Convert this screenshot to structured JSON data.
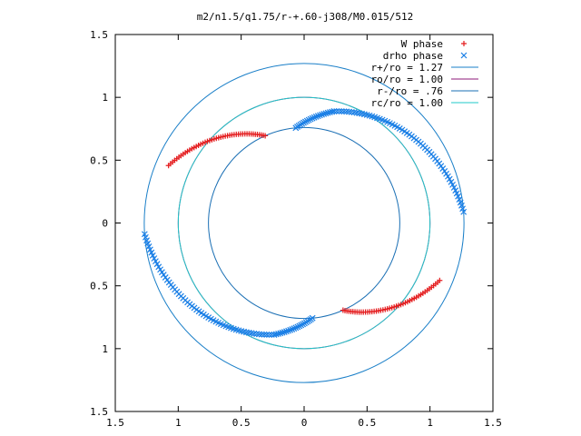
{
  "chart_data": {
    "type": "scatter",
    "title": "m2/n1.5/q1.75/r-+.60-j308/M0.015/512",
    "xlabel": "",
    "ylabel": "",
    "xlim": [
      -1.5,
      1.5
    ],
    "ylim": [
      -1.5,
      1.5
    ],
    "x_ticks": [
      -1.5,
      -1,
      -0.5,
      0,
      0.5,
      1,
      1.5
    ],
    "x_tick_labels": [
      "1.5",
      "1",
      "0.5",
      "0",
      "0.5",
      "1",
      "1.5"
    ],
    "y_ticks": [
      1.5,
      1,
      0.5,
      0,
      -0.5,
      -1,
      -1.5
    ],
    "y_tick_labels": [
      "1.5",
      "1",
      "0.5",
      "0",
      "0.5",
      "1",
      "1.5"
    ],
    "grid": false,
    "legend_position": "top-right",
    "series": [
      {
        "name": "W phase",
        "type": "points",
        "marker": "+",
        "color": "#e41a1c",
        "arcs": [
          {
            "r_start": 1.17,
            "r_end": 0.76,
            "theta_start_deg": 157,
            "theta_end_deg": 114,
            "n": 46
          },
          {
            "r_start": 0.76,
            "r_end": 1.17,
            "theta_start_deg": -66,
            "theta_end_deg": -23,
            "n": 46
          }
        ]
      },
      {
        "name": "drho phase",
        "type": "points",
        "marker": "x",
        "color": "#1a7fe6",
        "arcs": [
          {
            "r_start": 0.76,
            "r_end": 0.92,
            "theta_start_deg": 95,
            "theta_end_deg": 75,
            "n": 22
          },
          {
            "r_start": 0.92,
            "r_end": 1.27,
            "theta_start_deg": 75,
            "theta_end_deg": 4,
            "n": 62
          },
          {
            "r_start": 1.27,
            "r_end": 0.92,
            "theta_start_deg": 184,
            "theta_end_deg": 255,
            "n": 62
          },
          {
            "r_start": 0.92,
            "r_end": 0.76,
            "theta_start_deg": 255,
            "theta_end_deg": 275,
            "n": 22
          }
        ]
      },
      {
        "name": "r+/ro = 1.27",
        "type": "circle",
        "r": 1.27,
        "color": "#1a7fc8"
      },
      {
        "name": "ro/ro = 1.00",
        "type": "circle",
        "r": 1.0,
        "color": "#8e1a7a"
      },
      {
        "name": "r-/ro = .76",
        "type": "circle",
        "r": 0.76,
        "color": "#1a6fb4"
      },
      {
        "name": "rc/ro = 1.00",
        "type": "circle",
        "r": 1.0,
        "color": "#1fc8c8"
      }
    ],
    "legend": [
      {
        "label": "W phase",
        "symbol": "+",
        "color": "#e41a1c"
      },
      {
        "label": "drho phase",
        "symbol": "x",
        "color": "#1a7fe6"
      },
      {
        "label": "r+/ro = 1.27",
        "symbol": "line",
        "color": "#1a7fc8"
      },
      {
        "label": "ro/ro = 1.00",
        "symbol": "line",
        "color": "#8e1a7a"
      },
      {
        "label": "r-/ro = .76",
        "symbol": "line",
        "color": "#1a6fb4"
      },
      {
        "label": "rc/ro = 1.00",
        "symbol": "line",
        "color": "#1fc8c8"
      }
    ]
  }
}
